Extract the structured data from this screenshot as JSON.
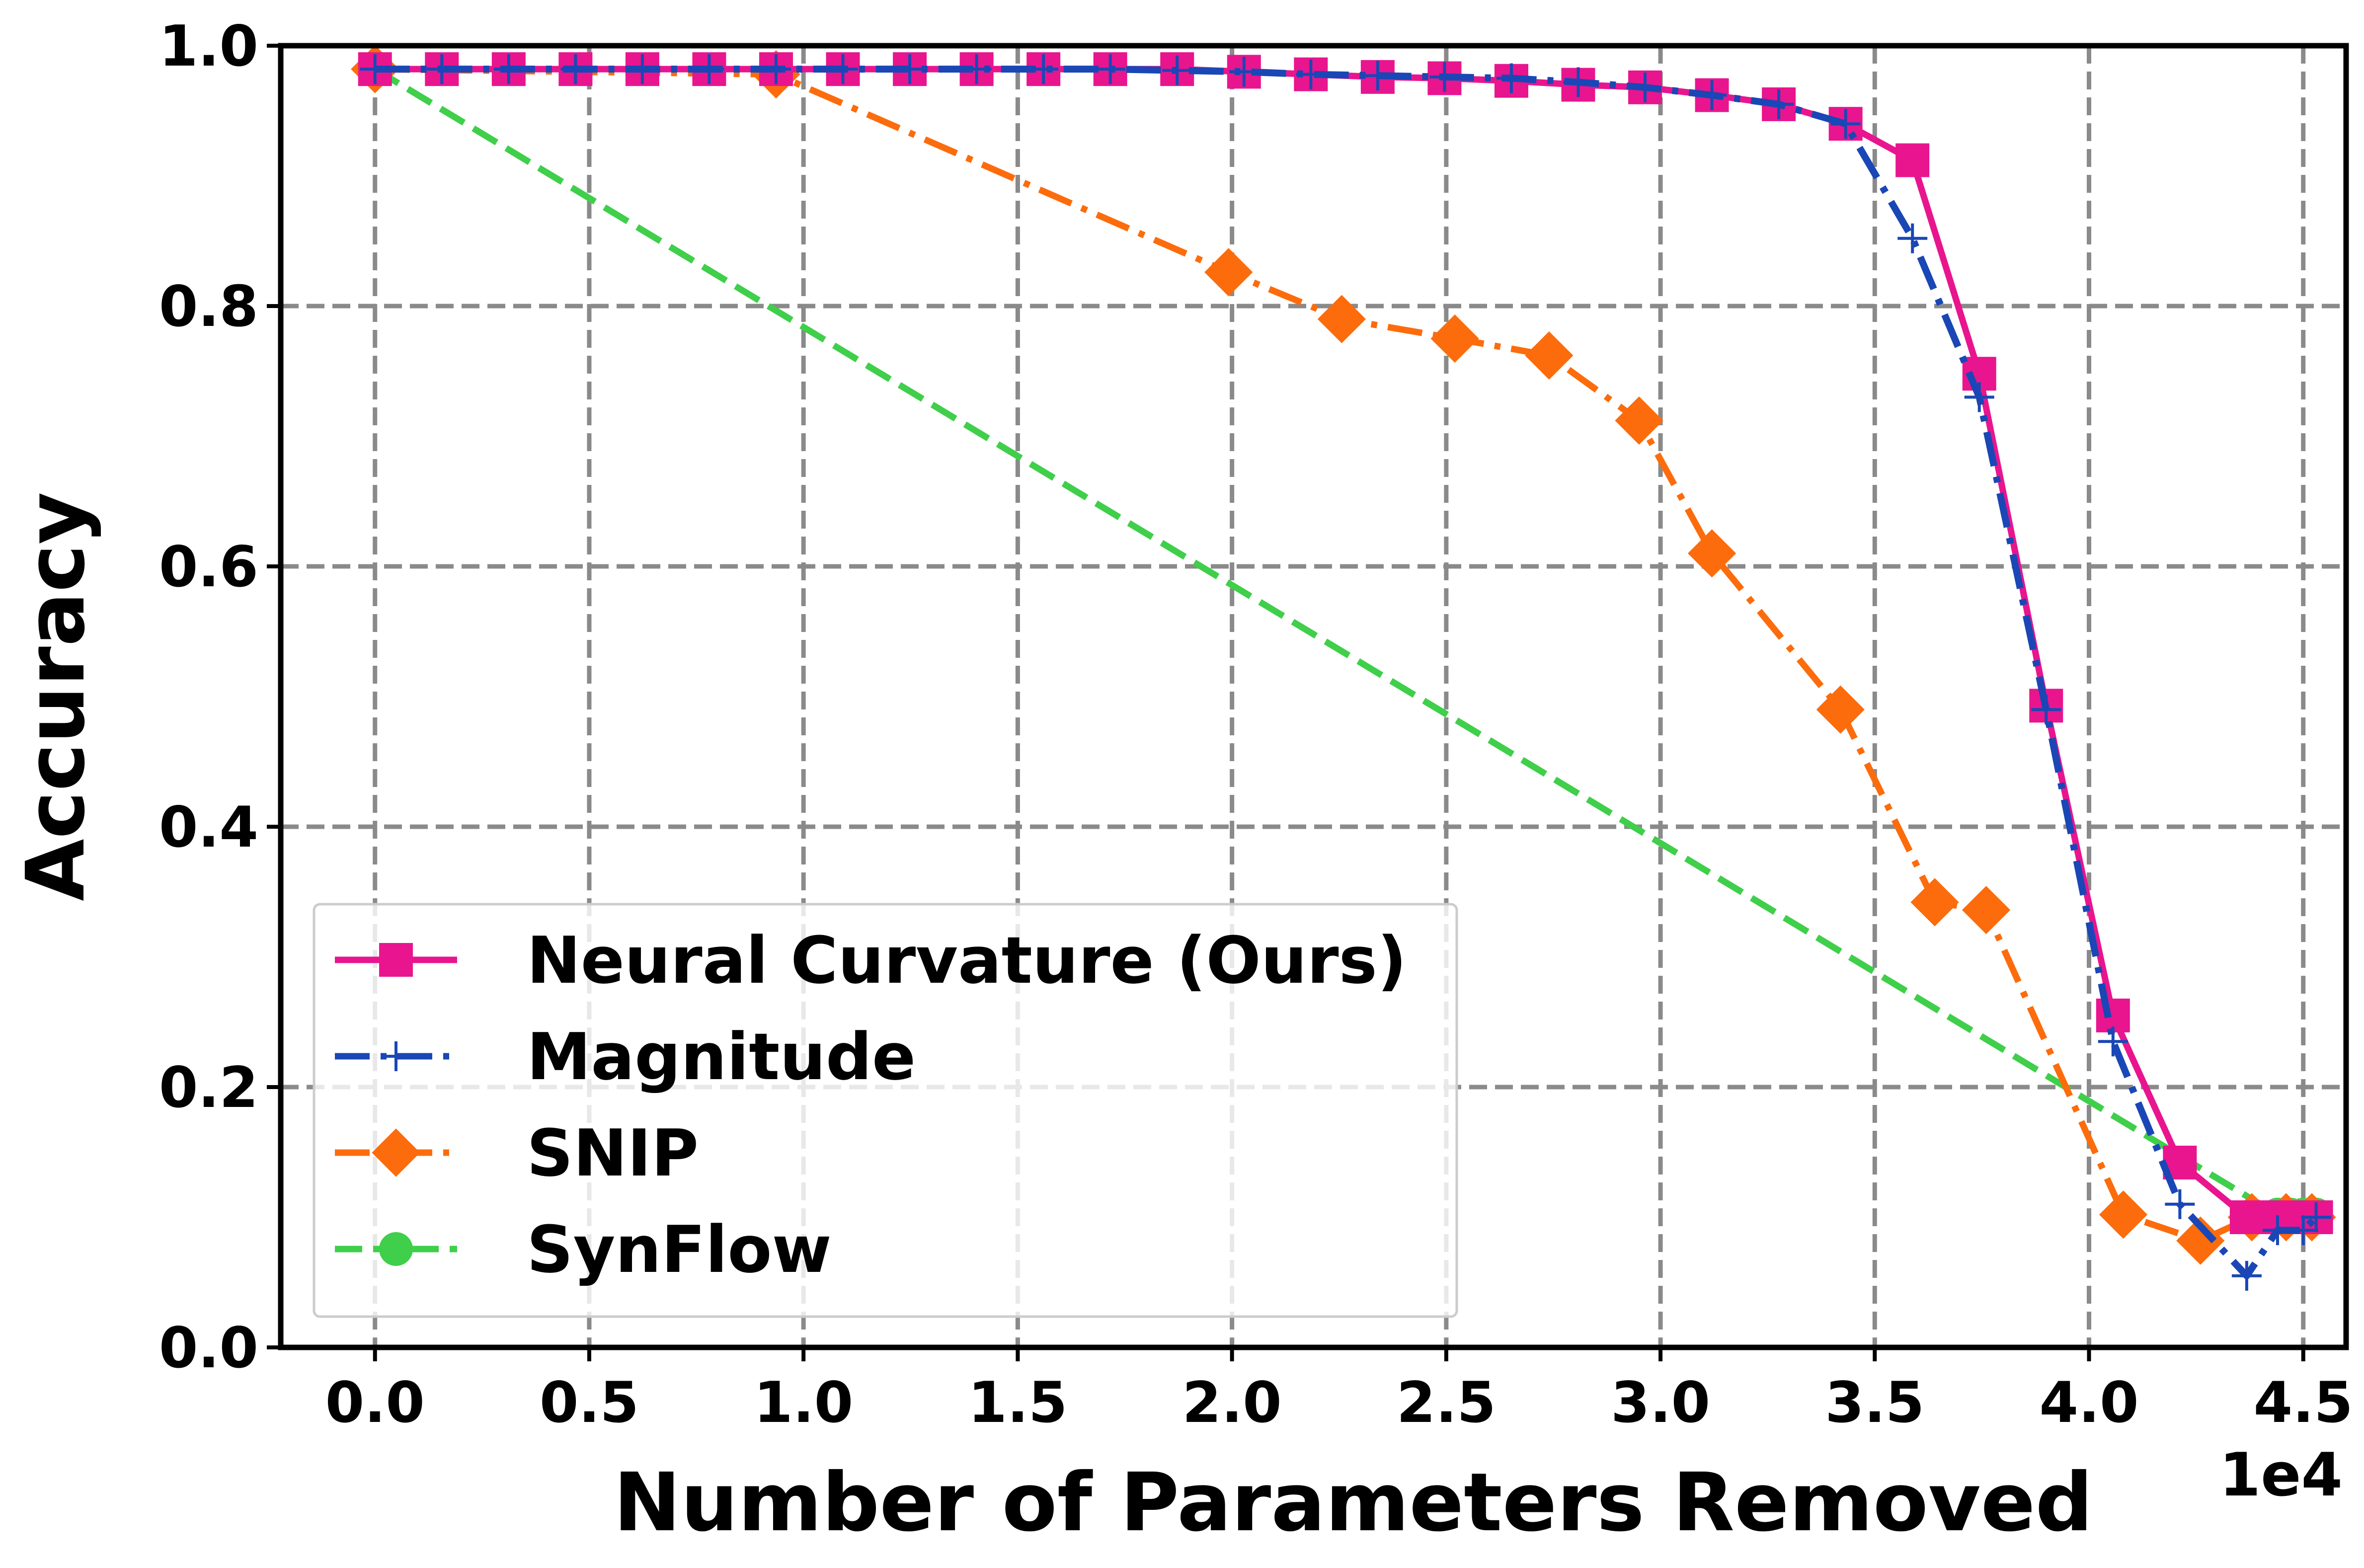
{
  "chart_data": {
    "type": "line",
    "xlabel": "Number of Parameters Removed",
    "ylabel": "Accuracy",
    "x_offset_label": "1e4",
    "xlim": [
      -0.22,
      4.6
    ],
    "ylim": [
      0.0,
      1.0
    ],
    "x_ticks": [
      "0.0",
      "0.5",
      "1.0",
      "1.5",
      "2.0",
      "2.5",
      "3.0",
      "3.5",
      "4.0",
      "4.5"
    ],
    "y_ticks": [
      "0.0",
      "0.2",
      "0.4",
      "0.6",
      "0.8",
      "1.0"
    ],
    "grid": true,
    "legend_position": "lower-left",
    "series": [
      {
        "name": "Neural Curvature (Ours)",
        "color": "#e8158f",
        "line_style": "solid",
        "marker": "square",
        "x": [
          0.0,
          0.156,
          0.312,
          0.468,
          0.624,
          0.78,
          0.936,
          1.092,
          1.248,
          1.404,
          1.56,
          1.716,
          1.872,
          2.028,
          2.184,
          2.34,
          2.496,
          2.652,
          2.808,
          2.964,
          3.12,
          3.276,
          3.432,
          3.588,
          3.744,
          3.9,
          4.056,
          4.212,
          4.368,
          4.44,
          4.5,
          4.53
        ],
        "y": [
          0.982,
          0.982,
          0.982,
          0.982,
          0.982,
          0.982,
          0.982,
          0.982,
          0.982,
          0.982,
          0.982,
          0.982,
          0.982,
          0.98,
          0.978,
          0.976,
          0.975,
          0.973,
          0.97,
          0.968,
          0.962,
          0.955,
          0.94,
          0.912,
          0.748,
          0.493,
          0.255,
          0.142,
          0.1,
          0.1,
          0.1,
          0.1
        ]
      },
      {
        "name": "Magnitude",
        "color": "#1a47b5",
        "line_style": "dashdot",
        "marker": "plus",
        "x": [
          0.0,
          0.156,
          0.312,
          0.468,
          0.624,
          0.78,
          0.936,
          1.092,
          1.248,
          1.404,
          1.56,
          1.716,
          1.872,
          2.028,
          2.184,
          2.34,
          2.496,
          2.652,
          2.808,
          2.964,
          3.12,
          3.276,
          3.432,
          3.588,
          3.744,
          3.9,
          4.056,
          4.212,
          4.368,
          4.44,
          4.5,
          4.53
        ],
        "y": [
          0.982,
          0.982,
          0.982,
          0.982,
          0.982,
          0.982,
          0.982,
          0.982,
          0.982,
          0.982,
          0.982,
          0.982,
          0.981,
          0.98,
          0.978,
          0.977,
          0.976,
          0.975,
          0.972,
          0.968,
          0.962,
          0.955,
          0.94,
          0.852,
          0.73,
          0.49,
          0.235,
          0.11,
          0.055,
          0.09,
          0.09,
          0.1
        ]
      },
      {
        "name": "SNIP",
        "color": "#fc6c0c",
        "line_style": "dashdot",
        "marker": "diamond",
        "x": [
          0.0,
          0.936,
          1.992,
          2.256,
          2.52,
          2.74,
          2.95,
          3.12,
          3.42,
          3.64,
          3.76,
          4.08,
          4.26,
          4.38,
          4.46,
          4.52
        ],
        "y": [
          0.982,
          0.978,
          0.826,
          0.79,
          0.775,
          0.762,
          0.712,
          0.61,
          0.49,
          0.342,
          0.336,
          0.102,
          0.082,
          0.1,
          0.1,
          0.1
        ]
      },
      {
        "name": "SynFlow",
        "color": "#3fcf4a",
        "line_style": "dashed",
        "marker": "circle",
        "x": [
          0.0,
          4.44,
          4.47,
          4.5,
          4.53
        ],
        "y": [
          0.982,
          0.102,
          0.102,
          0.102,
          0.102
        ]
      }
    ]
  }
}
